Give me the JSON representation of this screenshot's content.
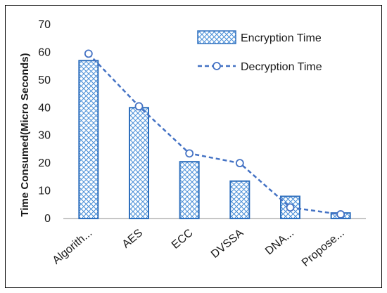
{
  "chart_data": {
    "type": "bar",
    "categories": [
      "Algorith...",
      "AES",
      "ECC",
      "DVSSA",
      "DNA...",
      "Propose..."
    ],
    "ylabel": "Time Consumed(Micro Seconds)",
    "xlabel": "",
    "ylim": [
      0,
      70
    ],
    "yticks": [
      0,
      10,
      20,
      30,
      40,
      50,
      60,
      70
    ],
    "grid": false,
    "legend_position": "top-right",
    "series": [
      {
        "name": "Encryption Time",
        "kind": "bar",
        "values": [
          57,
          40,
          20.5,
          13.5,
          8,
          2
        ]
      },
      {
        "name": "Decryption Time",
        "kind": "line",
        "values": [
          59.5,
          40.5,
          23.5,
          20,
          4,
          1.5
        ]
      }
    ],
    "colors": {
      "bar_border": "#2e6fbd",
      "hatch": "#4a8fd8",
      "line": "#4472c4",
      "marker_fill": "#ffffff",
      "axis": "#8c8c8c"
    }
  }
}
